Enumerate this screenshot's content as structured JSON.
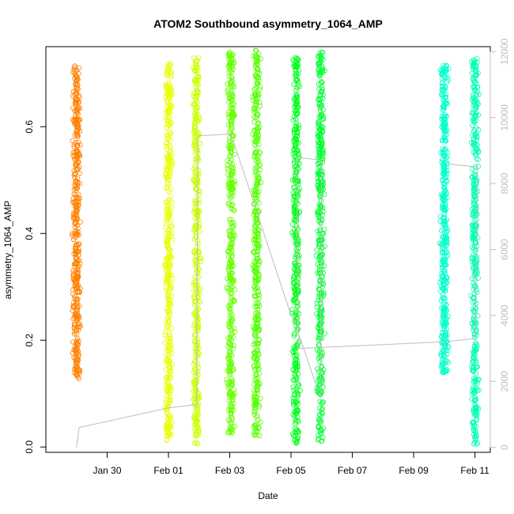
{
  "chart_data": {
    "type": "scatter",
    "title": "ATOM2 Southbound asymmetry_1064_AMP",
    "xlabel": "Date",
    "ylabel": "asymmetry_1064_AMP",
    "xlim": [
      "2024-01-28T00:00",
      "2024-02-11T12:00"
    ],
    "ylim": [
      -0.01,
      0.75
    ],
    "y2lim": [
      -150,
      12150
    ],
    "x_ticks": [
      {
        "date": "2024-01-30T00:00",
        "label": "Jan 30"
      },
      {
        "date": "2024-02-01T00:00",
        "label": "Feb 01"
      },
      {
        "date": "2024-02-03T00:00",
        "label": "Feb 03"
      },
      {
        "date": "2024-02-05T00:00",
        "label": "Feb 05"
      },
      {
        "date": "2024-02-07T00:00",
        "label": "Feb 07"
      },
      {
        "date": "2024-02-09T00:00",
        "label": "Feb 09"
      },
      {
        "date": "2024-02-11T00:00",
        "label": "Feb 11"
      }
    ],
    "y_ticks": [
      {
        "value": 0.0,
        "label": "0.0"
      },
      {
        "value": 0.2,
        "label": "0.2"
      },
      {
        "value": 0.4,
        "label": "0.4"
      },
      {
        "value": 0.6,
        "label": "0.6"
      }
    ],
    "y2_ticks": [
      {
        "value": 0,
        "label": "0"
      },
      {
        "value": 2000,
        "label": "2000"
      },
      {
        "value": 4000,
        "label": "4000"
      },
      {
        "value": 6000,
        "label": "6000"
      },
      {
        "value": 8000,
        "label": "8000"
      },
      {
        "value": 10000,
        "label": "10000"
      },
      {
        "value": 12000,
        "label": "12000"
      }
    ],
    "grid": false,
    "legend": "none",
    "point_clusters": [
      {
        "date": "2024-01-29T00:00",
        "y_range": [
          0.125,
          0.715
        ],
        "color": "#FF8000"
      },
      {
        "date": "2024-02-01T00:00",
        "y_range": [
          0.005,
          0.72
        ],
        "color": "#E6FF00"
      },
      {
        "date": "2024-02-01T22:00",
        "y_range": [
          0.005,
          0.73
        ],
        "color": "#CCFF00"
      },
      {
        "date": "2024-02-03T01:00",
        "y_range": [
          0.02,
          0.74
        ],
        "color": "#66FF00"
      },
      {
        "date": "2024-02-03T21:00",
        "y_range": [
          0.02,
          0.745
        ],
        "color": "#55FF00"
      },
      {
        "date": "2024-02-05T04:00",
        "y_range": [
          0.005,
          0.73
        ],
        "color": "#00FF1A"
      },
      {
        "date": "2024-02-05T23:00",
        "y_range": [
          0.01,
          0.74
        ],
        "color": "#00FF33"
      },
      {
        "date": "2024-02-10T00:00",
        "y_range": [
          0.135,
          0.715
        ],
        "color": "#00FFCC"
      },
      {
        "date": "2024-02-11T00:00",
        "y_range": [
          0.005,
          0.73
        ],
        "color": "#00FFB3"
      }
    ],
    "index_line": {
      "axis": "right",
      "color": "#bdbdbd",
      "points": [
        [
          "2024-01-29T00:00",
          0
        ],
        [
          "2024-01-29T02:00",
          600
        ],
        [
          "2024-02-01T00:00",
          1200
        ],
        [
          "2024-02-01T22:00",
          1300
        ],
        [
          "2024-02-01T23:00",
          9400
        ],
        [
          "2024-02-02T00:00",
          9450
        ],
        [
          "2024-02-03T01:00",
          9500
        ],
        [
          "2024-02-05T00:00",
          4000
        ],
        [
          "2024-02-05T02:00",
          3900
        ],
        [
          "2024-02-05T23:00",
          1500
        ],
        [
          "2024-02-06T00:00",
          8700
        ],
        [
          "2024-02-05T04:00",
          8800
        ],
        [
          "2024-02-05T06:00",
          3000
        ],
        [
          "2024-02-10T00:00",
          3200
        ],
        [
          "2024-02-11T00:00",
          3300
        ],
        [
          "2024-02-11T02:00",
          8500
        ],
        [
          "2024-02-10T02:00",
          8600
        ]
      ]
    }
  }
}
